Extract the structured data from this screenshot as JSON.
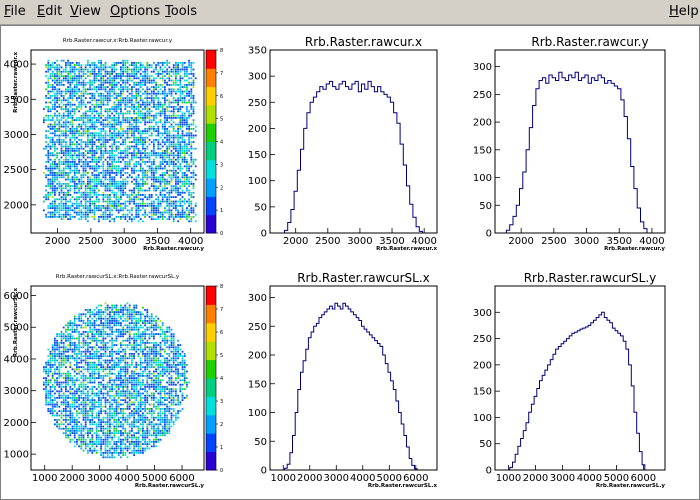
{
  "menu": {
    "items": [
      {
        "label": "File",
        "ul": "F",
        "rest": "ile"
      },
      {
        "label": "Edit",
        "ul": "E",
        "rest": "dit"
      },
      {
        "label": "View",
        "ul": "V",
        "rest": "iew"
      },
      {
        "label": "Options",
        "ul": "O",
        "rest": "ptions"
      },
      {
        "label": "Tools",
        "ul": "T",
        "rest": "ools"
      }
    ],
    "help": {
      "label": "Help",
      "ul": "H",
      "rest": "elp"
    }
  },
  "palette": {
    "line": "#00007f",
    "scale": [
      "#2b00d4",
      "#0044ff",
      "#00a0ff",
      "#00e0e0",
      "#00d080",
      "#20d000",
      "#b0e000",
      "#ffd000",
      "#ff8000",
      "#ff0000"
    ]
  },
  "chart_data": [
    {
      "type": "heatmap",
      "title": "Rrb.Raster.rawcur.x:Rrb.Raster.rawcur.y",
      "xlabel": "Rrb.Raster.rawcur.y",
      "ylabel": "Rrb.Raster.rawcur.x",
      "xlim": [
        1600,
        4200
      ],
      "ylim": [
        1600,
        4200
      ],
      "xticks": [
        "2000",
        "2500",
        "3000",
        "3500",
        "4000"
      ],
      "yticks": [
        "2000",
        "2500",
        "3000",
        "3500",
        "4000"
      ],
      "shape": "square",
      "region": {
        "x": [
          1800,
          4050
        ],
        "y": [
          1800,
          4050
        ]
      },
      "zscale": [
        "0",
        "1",
        "2",
        "3",
        "4",
        "5",
        "6",
        "7",
        "8"
      ]
    },
    {
      "type": "bar",
      "title": "Rrb.Raster.rawcur.x",
      "xlabel": "Rrb.Raster.rawcur.x",
      "xlim": [
        1600,
        4200
      ],
      "ylim": [
        0,
        350
      ],
      "xticks": [
        "2000",
        "2500",
        "3000",
        "3500",
        "4000"
      ],
      "yticks": [
        "0",
        "50",
        "100",
        "150",
        "200",
        "250",
        "300",
        "350"
      ],
      "x": [
        1800,
        1850,
        1900,
        1950,
        2000,
        2050,
        2100,
        2150,
        2200,
        2250,
        2300,
        2350,
        2400,
        2450,
        2500,
        2550,
        2600,
        2650,
        2700,
        2750,
        2800,
        2850,
        2900,
        2950,
        3000,
        3050,
        3100,
        3150,
        3200,
        3250,
        3300,
        3350,
        3400,
        3450,
        3500,
        3550,
        3600,
        3650,
        3700,
        3750,
        3800,
        3850,
        3900,
        3950,
        4000
      ],
      "values": [
        0,
        5,
        20,
        45,
        80,
        120,
        160,
        200,
        230,
        250,
        260,
        270,
        280,
        275,
        285,
        290,
        280,
        275,
        285,
        290,
        280,
        275,
        285,
        290,
        270,
        285,
        275,
        290,
        280,
        270,
        280,
        270,
        265,
        260,
        250,
        230,
        210,
        170,
        130,
        90,
        55,
        30,
        12,
        3,
        0
      ]
    },
    {
      "type": "bar",
      "title": "Rrb.Raster.rawcur.y",
      "xlabel": "Rrb.Raster.rawcur.y",
      "xlim": [
        1600,
        4200
      ],
      "ylim": [
        0,
        330
      ],
      "xticks": [
        "2000",
        "2500",
        "3000",
        "3500",
        "4000"
      ],
      "yticks": [
        "0",
        "50",
        "100",
        "150",
        "200",
        "250",
        "300"
      ],
      "x": [
        1750,
        1800,
        1850,
        1900,
        1950,
        2000,
        2050,
        2100,
        2150,
        2200,
        2250,
        2300,
        2350,
        2400,
        2450,
        2500,
        2550,
        2600,
        2650,
        2700,
        2750,
        2800,
        2850,
        2900,
        2950,
        3000,
        3050,
        3100,
        3150,
        3200,
        3250,
        3300,
        3350,
        3400,
        3450,
        3500,
        3550,
        3600,
        3650,
        3700,
        3750,
        3800,
        3850,
        3900,
        3950
      ],
      "values": [
        0,
        5,
        15,
        30,
        50,
        80,
        110,
        150,
        190,
        230,
        260,
        275,
        280,
        270,
        285,
        280,
        275,
        290,
        280,
        275,
        285,
        280,
        290,
        275,
        280,
        285,
        270,
        280,
        275,
        285,
        280,
        270,
        275,
        270,
        265,
        260,
        240,
        210,
        170,
        120,
        80,
        45,
        20,
        8,
        0
      ]
    },
    {
      "type": "heatmap",
      "title": "Rrb.Raster.rawcurSL.x:Rrb.Raster.rawcurSL.y",
      "xlabel": "Rrb.Raster.rawcurSL.y",
      "ylabel": "Rrb.Raster.rawcurSL.x",
      "xlim": [
        500,
        6800
      ],
      "ylim": [
        500,
        6300
      ],
      "xticks": [
        "1000",
        "2000",
        "3000",
        "4000",
        "5000",
        "6000"
      ],
      "yticks": [
        "1000",
        "2000",
        "3000",
        "4000",
        "5000",
        "6000"
      ],
      "shape": "ellipse",
      "region": {
        "x": [
          900,
          6200
        ],
        "y": [
          900,
          5800
        ]
      },
      "zscale": [
        "0",
        "1",
        "2",
        "3",
        "4",
        "5",
        "6",
        "7",
        "8"
      ]
    },
    {
      "type": "bar",
      "title": "Rrb.Raster.rawcurSL.x",
      "xlabel": "Rrb.Raster.rawcurSL.x",
      "xlim": [
        500,
        6800
      ],
      "ylim": [
        0,
        320
      ],
      "xticks": [
        "1000",
        "2000",
        "3000",
        "4000",
        "5000",
        "6000"
      ],
      "yticks": [
        "0",
        "50",
        "100",
        "150",
        "200",
        "250",
        "300"
      ],
      "x": [
        1000,
        1100,
        1200,
        1300,
        1400,
        1500,
        1600,
        1700,
        1800,
        1900,
        2000,
        2100,
        2200,
        2300,
        2400,
        2500,
        2600,
        2700,
        2800,
        2900,
        3000,
        3100,
        3200,
        3300,
        3400,
        3500,
        3600,
        3700,
        3800,
        3900,
        4000,
        4100,
        4200,
        4300,
        4400,
        4500,
        4600,
        4700,
        4800,
        4900,
        5000,
        5100,
        5200,
        5300,
        5400,
        5500,
        5600,
        5700,
        5800,
        5900,
        6000,
        6100
      ],
      "values": [
        0,
        3,
        10,
        30,
        60,
        100,
        140,
        170,
        190,
        210,
        230,
        240,
        250,
        255,
        265,
        270,
        275,
        280,
        285,
        280,
        290,
        285,
        280,
        290,
        285,
        280,
        275,
        270,
        265,
        260,
        250,
        245,
        240,
        235,
        230,
        225,
        220,
        215,
        200,
        185,
        170,
        155,
        140,
        120,
        100,
        80,
        60,
        40,
        20,
        8,
        2,
        0
      ]
    },
    {
      "type": "bar",
      "title": "Rrb.Raster.rawcurSL.y",
      "xlabel": "Rrb.Raster.rawcurSL.y",
      "xlim": [
        500,
        6800
      ],
      "ylim": [
        0,
        350
      ],
      "xticks": [
        "1000",
        "2000",
        "3000",
        "4000",
        "5000",
        "6000"
      ],
      "yticks": [
        "0",
        "50",
        "100",
        "150",
        "200",
        "250",
        "300"
      ],
      "x": [
        1000,
        1100,
        1200,
        1300,
        1400,
        1500,
        1600,
        1700,
        1800,
        1900,
        2000,
        2100,
        2200,
        2300,
        2400,
        2500,
        2600,
        2700,
        2800,
        2900,
        3000,
        3100,
        3200,
        3300,
        3400,
        3500,
        3600,
        3700,
        3800,
        3900,
        4000,
        4100,
        4200,
        4300,
        4400,
        4500,
        4600,
        4700,
        4800,
        4900,
        5000,
        5100,
        5200,
        5300,
        5400,
        5500,
        5600,
        5700,
        5800,
        5900,
        6000,
        6100
      ],
      "values": [
        0,
        5,
        15,
        30,
        45,
        60,
        75,
        90,
        110,
        125,
        140,
        155,
        170,
        180,
        190,
        200,
        210,
        220,
        230,
        235,
        240,
        245,
        250,
        255,
        260,
        262,
        265,
        268,
        270,
        272,
        275,
        280,
        285,
        290,
        295,
        300,
        290,
        285,
        280,
        270,
        265,
        260,
        255,
        245,
        230,
        200,
        160,
        110,
        70,
        35,
        10,
        0
      ]
    }
  ]
}
